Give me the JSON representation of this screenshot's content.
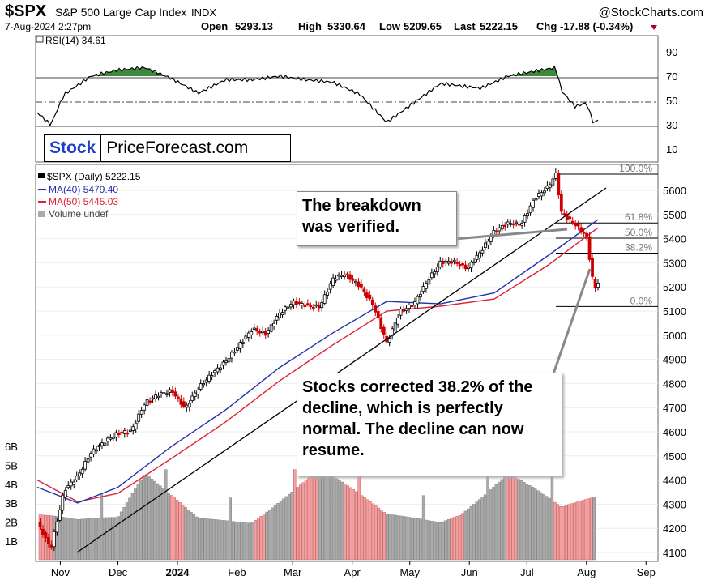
{
  "header": {
    "symbol": "$SPX",
    "name": "S&P 500 Large Cap Index",
    "exchange": "INDX",
    "source": "@StockCharts.com",
    "date": "7-Aug-2024 2:27pm",
    "open_label": "Open",
    "open": "5293.13",
    "high_label": "High",
    "high": "5330.64",
    "low_label": "Low",
    "low": "5209.65",
    "last_label": "Last",
    "last": "5222.15",
    "chg_label": "Chg",
    "chg": "-17.88 (-0.34%)"
  },
  "logo": {
    "part1": "Stock",
    "part2": "PriceForecast.com"
  },
  "rsi_legend": "RSI(14) 34.61",
  "price_legend": {
    "spx": "$SPX (Daily) 5222.15",
    "ma40": "MA(40) 5479.40",
    "ma50": "MA(50) 5445.03",
    "volume": "Volume undef"
  },
  "callouts": {
    "breakdown": "The breakdown was verified.",
    "corrected": "Stocks corrected 38.2% of the decline, which is perfectly normal. The decline can now resume."
  },
  "fib_labels": [
    "100.0%",
    "61.8%",
    "50.0%",
    "38.2%",
    "0.0%"
  ],
  "colors": {
    "up_candle": "#000000",
    "down_candle": "#cc0000",
    "ma40": "#2233aa",
    "ma50": "#dd2233",
    "volume_up": "#aaaaaa",
    "volume_down": "#f0a0a0",
    "rsi_fill": "#3d8a3d"
  },
  "chart_data": {
    "type": "line",
    "x_labels": [
      "Nov",
      "Dec",
      "2024",
      "Feb",
      "Mar",
      "Apr",
      "May",
      "Jun",
      "Jul",
      "Aug",
      "Sep"
    ],
    "price_axis": [
      5600,
      5500,
      5400,
      5300,
      5200,
      5100,
      5000,
      4900,
      4800,
      4700,
      4600,
      4500,
      4400,
      4300,
      4200,
      4100
    ],
    "rsi_axis": [
      90,
      70,
      50,
      30,
      10
    ],
    "volume_axis": [
      "6B",
      "5B",
      "4B",
      "3B",
      "2B",
      "1B"
    ],
    "ylim": [
      4080,
      5720
    ],
    "rsi_ylim": [
      0,
      100
    ],
    "fib_levels": [
      {
        "label": "100.0%",
        "value": 5667
      },
      {
        "label": "61.8%",
        "value": 5465
      },
      {
        "label": "50.0%",
        "value": 5402
      },
      {
        "label": "38.2%",
        "value": 5340
      },
      {
        "label": "0.0%",
        "value": 5119
      }
    ],
    "series": [
      {
        "name": "$SPX (Daily)",
        "x": [
          "2023-10-20",
          "2023-10-27",
          "2023-11-03",
          "2023-11-10",
          "2023-11-17",
          "2023-11-24",
          "2023-12-01",
          "2023-12-08",
          "2023-12-15",
          "2023-12-22",
          "2023-12-29",
          "2024-01-05",
          "2024-01-12",
          "2024-01-19",
          "2024-01-26",
          "2024-02-02",
          "2024-02-09",
          "2024-02-16",
          "2024-02-23",
          "2024-03-01",
          "2024-03-08",
          "2024-03-15",
          "2024-03-22",
          "2024-03-28",
          "2024-04-05",
          "2024-04-12",
          "2024-04-19",
          "2024-04-26",
          "2024-05-03",
          "2024-05-10",
          "2024-05-17",
          "2024-05-24",
          "2024-05-31",
          "2024-06-07",
          "2024-06-14",
          "2024-06-21",
          "2024-06-28",
          "2024-07-05",
          "2024-07-12",
          "2024-07-16",
          "2024-07-19",
          "2024-07-26",
          "2024-08-01",
          "2024-08-05",
          "2024-08-07"
        ],
        "values": [
          4225,
          4117,
          4358,
          4415,
          4514,
          4559,
          4594,
          4604,
          4719,
          4754,
          4770,
          4697,
          4783,
          4840,
          4891,
          4958,
          5026,
          5005,
          5089,
          5137,
          5124,
          5117,
          5234,
          5254,
          5204,
          5123,
          4967,
          5100,
          5128,
          5223,
          5303,
          5305,
          5277,
          5347,
          5431,
          5464,
          5460,
          5567,
          5615,
          5667,
          5505,
          5459,
          5410,
          5186,
          5222
        ]
      },
      {
        "name": "MA(40)",
        "x": [
          "2023-10-20",
          "2023-11-10",
          "2023-12-01",
          "2023-12-29",
          "2024-01-26",
          "2024-02-23",
          "2024-03-22",
          "2024-04-19",
          "2024-05-17",
          "2024-06-14",
          "2024-07-12",
          "2024-08-07"
        ],
        "values": [
          4370,
          4305,
          4370,
          4540,
          4690,
          4865,
          5010,
          5140,
          5130,
          5175,
          5330,
          5479
        ]
      },
      {
        "name": "MA(50)",
        "x": [
          "2023-10-20",
          "2023-11-10",
          "2023-12-01",
          "2023-12-29",
          "2024-01-26",
          "2024-02-23",
          "2024-03-22",
          "2024-04-19",
          "2024-05-17",
          "2024-06-14",
          "2024-07-12",
          "2024-08-07"
        ],
        "values": [
          4400,
          4310,
          4345,
          4490,
          4640,
          4810,
          4960,
          5100,
          5120,
          5150,
          5290,
          5445
        ]
      },
      {
        "name": "RSI(14)",
        "x": [
          "2023-10-20",
          "2023-10-27",
          "2023-11-03",
          "2023-11-17",
          "2023-12-01",
          "2023-12-15",
          "2023-12-29",
          "2024-01-12",
          "2024-01-26",
          "2024-02-09",
          "2024-02-23",
          "2024-03-08",
          "2024-03-22",
          "2024-04-05",
          "2024-04-19",
          "2024-05-03",
          "2024-05-17",
          "2024-06-07",
          "2024-06-21",
          "2024-07-05",
          "2024-07-16",
          "2024-07-19",
          "2024-07-26",
          "2024-08-01",
          "2024-08-05",
          "2024-08-07"
        ],
        "values": [
          40,
          30,
          55,
          70,
          75,
          77,
          68,
          56,
          67,
          67,
          70,
          67,
          65,
          55,
          32,
          48,
          64,
          60,
          70,
          74,
          77,
          58,
          45,
          48,
          30,
          34.61
        ]
      }
    ],
    "volume": {
      "x": [
        "2023-10-20",
        "2023-11-10",
        "2023-12-01",
        "2023-12-15",
        "2024-01-12",
        "2024-02-09",
        "2024-03-15",
        "2024-04-19",
        "2024-05-17",
        "2024-06-21",
        "2024-07-19",
        "2024-08-05"
      ],
      "values": [
        3.2,
        2.4,
        2.3,
        4.6,
        2.4,
        2.6,
        5.0,
        2.5,
        2.4,
        5.0,
        2.8,
        3.4
      ]
    }
  }
}
